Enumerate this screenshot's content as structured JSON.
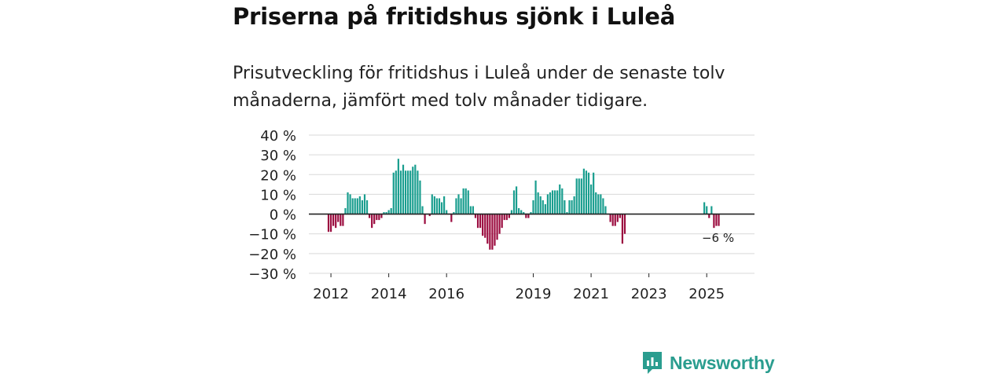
{
  "header": {
    "title": "Priserna på fritidshus sjönk i Luleå",
    "subtitle": "Prisutveckling för fritidshus i Luleå under de senaste tolv månaderna, jämfört med tolv månader tidigare."
  },
  "brand": {
    "name": "Newsworthy",
    "icon": "newsworthy-logo-icon"
  },
  "colors": {
    "positive": "#1a9e8f",
    "negative": "#9b0c3f",
    "grid": "#d9d9d9",
    "zero": "#222222",
    "text": "#222222"
  },
  "chart_data": {
    "type": "bar",
    "title": "Priserna på fritidshus sjönk i Luleå",
    "xlabel": "",
    "ylabel": "",
    "ylim": [
      -30,
      40
    ],
    "yticks": [
      40,
      30,
      20,
      10,
      0,
      -10,
      -20,
      -30
    ],
    "ytick_labels": [
      "40 %",
      "30 %",
      "20 %",
      "10 %",
      "0 %",
      "−10 %",
      "−20 %",
      "−30 %"
    ],
    "xticks": [
      {
        "label": "2012",
        "month": 1
      },
      {
        "label": "2014",
        "month": 25
      },
      {
        "label": "2016",
        "month": 49
      },
      {
        "label": "2019",
        "month": 85
      },
      {
        "label": "2021",
        "month": 109
      },
      {
        "label": "2023",
        "month": 133
      },
      {
        "label": "2025",
        "month": 157
      }
    ],
    "x_start": "2011-10",
    "x_end": "2026-05",
    "unit": "%",
    "annotation": {
      "label": "−6 %",
      "value": -6
    },
    "series": [
      {
        "name": "Prisutveckling",
        "values": [
          -9,
          -9,
          -6,
          -7,
          -4,
          -6,
          -6,
          3,
          11,
          10,
          8,
          8,
          8,
          9,
          7,
          10,
          7,
          -2,
          -7,
          -5,
          -3,
          -3,
          -2,
          1,
          1,
          2,
          3,
          21,
          22,
          28,
          22,
          25,
          22,
          22,
          22,
          24,
          25,
          22,
          17,
          4,
          -5,
          0,
          -1,
          10,
          9,
          8,
          8,
          6,
          9,
          2,
          0,
          -4,
          1,
          8,
          10,
          8,
          13,
          13,
          12,
          4,
          4,
          -2,
          -7,
          -7,
          -11,
          -12,
          -15,
          -18,
          -18,
          -16,
          -13,
          -10,
          -7,
          -3,
          -3,
          -2,
          2,
          12,
          14,
          3,
          2,
          1,
          -2,
          -2,
          1,
          7,
          17,
          11,
          9,
          7,
          5,
          10,
          11,
          12,
          12,
          12,
          15,
          13,
          7,
          1,
          7,
          7,
          9,
          18,
          18,
          18,
          23,
          22,
          21,
          15,
          21,
          11,
          10,
          10,
          8,
          4,
          0,
          -4,
          -6,
          -6,
          -4,
          -2,
          -15,
          -10,
          null,
          null,
          null,
          null,
          null,
          null,
          null,
          null,
          null,
          null,
          null,
          null,
          null,
          null,
          null,
          null,
          null,
          null,
          null,
          null,
          null,
          null,
          null,
          null,
          null,
          null,
          null,
          null,
          null,
          null,
          null,
          null,
          6,
          4,
          -2,
          4,
          -7,
          -6,
          -6
        ]
      }
    ]
  }
}
